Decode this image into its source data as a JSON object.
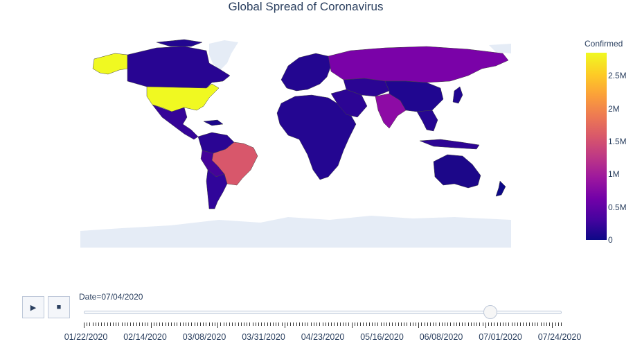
{
  "title": "Global Spread of Coronavirus",
  "colorbar": {
    "title": "Confirmed",
    "ticks": [
      "0",
      "0.5M",
      "1M",
      "1.5M",
      "2M",
      "2.5M"
    ],
    "tick_values": [
      0,
      500000,
      1000000,
      1500000,
      2000000,
      2500000
    ],
    "max": 2850000,
    "colorscale": [
      "#0d0887",
      "#46039f",
      "#7201a8",
      "#9c179e",
      "#bd3786",
      "#d8576b",
      "#ed7953",
      "#fb9f3a",
      "#fdca26",
      "#f0f921"
    ]
  },
  "chart_data": {
    "type": "choropleth",
    "title": "Global Spread of Coronavirus",
    "value_label": "Confirmed",
    "date": "07/04/2020",
    "estimated_values": [
      {
        "region": "United States",
        "value": 2850000
      },
      {
        "region": "Brazil",
        "value": 1580000
      },
      {
        "region": "Russia",
        "value": 680000
      },
      {
        "region": "India",
        "value": 670000
      },
      {
        "region": "Canada",
        "value": 105000
      },
      {
        "region": "Mexico",
        "value": 250000
      },
      {
        "region": "Peru",
        "value": 300000
      },
      {
        "region": "Chile",
        "value": 290000
      },
      {
        "region": "China",
        "value": 85000
      },
      {
        "region": "Australia",
        "value": 8400
      }
    ]
  },
  "controls": {
    "play_icon": "play-icon",
    "stop_icon": "stop-icon",
    "play_label": "▶",
    "stop_label": "■"
  },
  "slider": {
    "label": "Date=07/04/2020",
    "current_fraction": 0.85,
    "tick_count": 165,
    "tick_labels": [
      "01/22/2020",
      "02/14/2020",
      "03/08/2020",
      "03/31/2020",
      "04/23/2020",
      "05/16/2020",
      "06/08/2020",
      "07/01/2020",
      "07/24/2020"
    ]
  }
}
